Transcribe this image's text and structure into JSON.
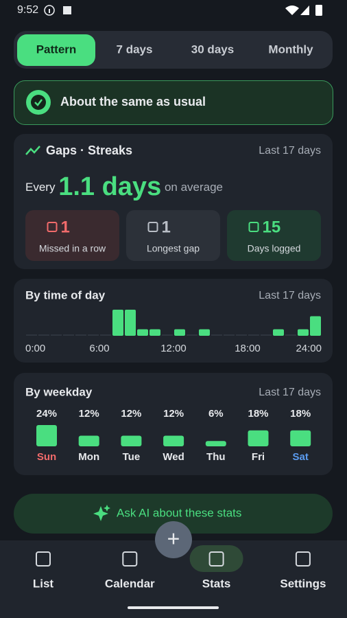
{
  "status_bar": {
    "time": "9:52"
  },
  "tabs": {
    "items": [
      "Pattern",
      "7 days",
      "30 days",
      "Monthly"
    ],
    "active": 0
  },
  "banner": {
    "text": "About the same as usual"
  },
  "gaps": {
    "title": "Gaps · Streaks",
    "range": "Last 17 days",
    "prefix": "Every",
    "average": "1.1 days",
    "suffix": "on average",
    "stats": [
      {
        "value": 1,
        "label": "Missed in a row"
      },
      {
        "value": 1,
        "label": "Longest gap"
      },
      {
        "value": 15,
        "label": "Days logged"
      }
    ]
  },
  "chart_data": [
    {
      "type": "bar",
      "title": "By time of day",
      "subtitle": "Last 17 days",
      "x": [
        0,
        1,
        2,
        3,
        4,
        5,
        6,
        7,
        8,
        9,
        10,
        11,
        12,
        13,
        14,
        15,
        16,
        17,
        18,
        19,
        20,
        21,
        22,
        23
      ],
      "values": [
        0,
        0,
        0,
        0,
        0,
        0,
        0,
        4,
        4,
        1,
        1,
        0,
        1,
        0,
        1,
        0,
        0,
        0,
        0,
        0,
        1,
        0,
        1,
        3
      ],
      "xlim": [
        0,
        24
      ],
      "xticks": [
        {
          "value": 0,
          "label": "0:00"
        },
        {
          "value": 6,
          "label": "6:00"
        },
        {
          "value": 12,
          "label": "12:00"
        },
        {
          "value": 18,
          "label": "18:00"
        },
        {
          "value": 24,
          "label": "24:00"
        }
      ],
      "color": "#4ade80"
    },
    {
      "type": "bar",
      "title": "By weekday",
      "subtitle": "Last 17 days",
      "categories": [
        "Sun",
        "Mon",
        "Tue",
        "Wed",
        "Thu",
        "Fri",
        "Sat"
      ],
      "values": [
        24,
        12,
        12,
        12,
        6,
        18,
        18
      ],
      "value_labels": [
        "24%",
        "12%",
        "12%",
        "12%",
        "6%",
        "18%",
        "18%"
      ],
      "color": "#4ade80"
    }
  ],
  "ask_button": {
    "text": "Ask AI about these stats"
  },
  "fab": {
    "label": "+"
  },
  "nav": {
    "items": [
      "List",
      "Calendar",
      "Stats",
      "Settings"
    ],
    "active": 2
  }
}
